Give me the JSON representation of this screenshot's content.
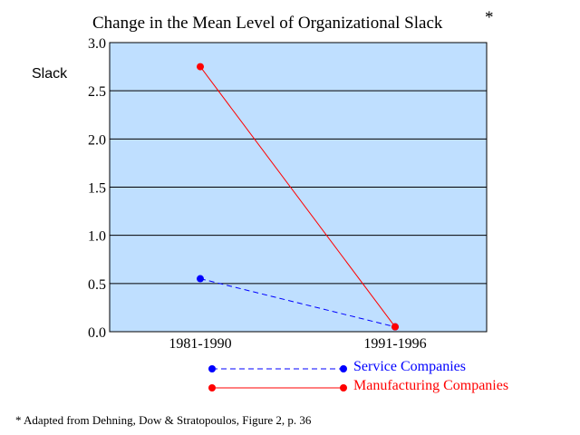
{
  "chart_data": {
    "type": "line",
    "title": "Change in the Mean Level of Organizational Slack",
    "title_marker": "*",
    "ylabel": "Slack",
    "xlabel": "",
    "categories": [
      "1981-1990",
      "1991-1996"
    ],
    "ylim": [
      0,
      3.0
    ],
    "yticks": [
      "0.0",
      "0.5",
      "1.0",
      "1.5",
      "2.0",
      "2.5",
      "3.0"
    ],
    "grid": "horizontal",
    "legend_position": "bottom",
    "plot_background": "#bfdfff",
    "series": [
      {
        "name": "Service Companies",
        "values": [
          0.55,
          0.05
        ],
        "color": "#0000ff",
        "line_style": "dashed"
      },
      {
        "name": "Manufacturing Companies",
        "values": [
          2.75,
          0.05
        ],
        "color": "#ff0000",
        "line_style": "solid"
      }
    ],
    "footnote": "* Adapted from Dehning, Dow & Stratopoulos, Figure 2, p. 36"
  }
}
